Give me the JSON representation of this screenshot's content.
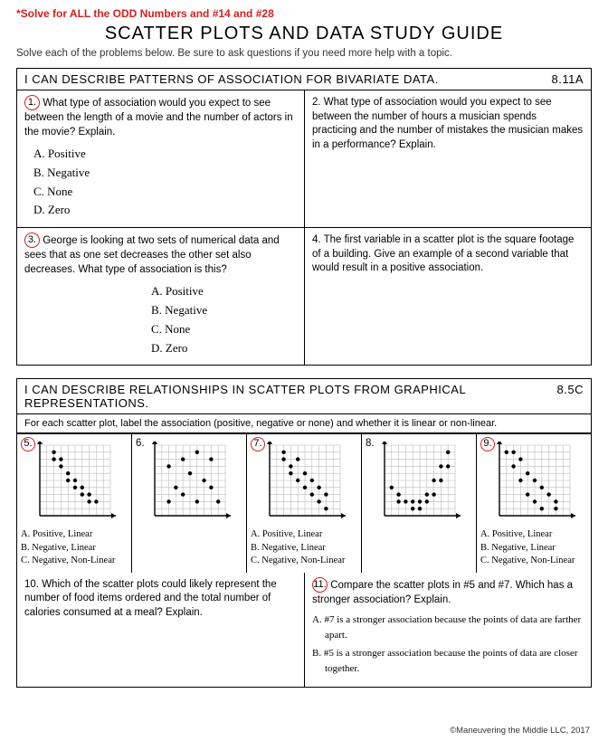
{
  "instruction": "*Solve for ALL the ODD Numbers and #14 and #28",
  "title": "SCATTER PLOTS AND DATA STUDY GUIDE",
  "subtitle": "Solve each of the problems below. Be sure to ask questions if you need more help with a topic.",
  "section1": {
    "header": "I CAN DESCRIBE PATTERNS OF ASSOCIATION FOR BIVARIATE DATA.",
    "code": "8.11A",
    "q1": {
      "num": "1.",
      "text": "What type of association would you expect to see between the length of a movie and the number of actors in the movie? Explain.",
      "options": [
        "A. Positive",
        "B. Negative",
        "C. None",
        "D. Zero"
      ]
    },
    "q2": {
      "num": "2.",
      "text": "What type of association would you expect to see between the number of hours a musician spends practicing and the number of mistakes the musician makes in a performance? Explain."
    },
    "q3": {
      "num": "3.",
      "text": "George is looking at two sets of numerical data and sees that as one set decreases the other set also decreases. What type of association is this?",
      "options": [
        "A. Positive",
        "B. Negative",
        "C. None",
        "D. Zero"
      ]
    },
    "q4": {
      "num": "4.",
      "text": "The first variable in a scatter plot is the square footage of a building. Give an example of a second variable that would result in a positive association."
    }
  },
  "section2": {
    "header": "I CAN DESCRIBE RELATIONSHIPS IN SCATTER PLOTS FROM GRAPHICAL REPRESENTATIONS.",
    "code": "8.5C",
    "sub": "For each scatter plot, label the association (positive, negative or none) and whether it is linear or non-linear.",
    "plots": [
      {
        "num": "5.",
        "circled": true,
        "points": [
          [
            2,
            9
          ],
          [
            2,
            8
          ],
          [
            3,
            8
          ],
          [
            3,
            7
          ],
          [
            4,
            6
          ],
          [
            4,
            5
          ],
          [
            5,
            5
          ],
          [
            5,
            4
          ],
          [
            6,
            4
          ],
          [
            6,
            3
          ],
          [
            7,
            3
          ],
          [
            7,
            2
          ],
          [
            8,
            2
          ]
        ],
        "answers": [
          "A. Positive, Linear",
          "B. Negative, Linear",
          "C. Negative, Non-Linear"
        ]
      },
      {
        "num": "6.",
        "circled": false,
        "points": [
          [
            2,
            2
          ],
          [
            2,
            7
          ],
          [
            3,
            4
          ],
          [
            4,
            8
          ],
          [
            4,
            3
          ],
          [
            5,
            6
          ],
          [
            6,
            2
          ],
          [
            6,
            9
          ],
          [
            7,
            5
          ],
          [
            8,
            4
          ],
          [
            8,
            8
          ],
          [
            9,
            2
          ]
        ],
        "answers": []
      },
      {
        "num": "7.",
        "circled": true,
        "points": [
          [
            2,
            8
          ],
          [
            2,
            9
          ],
          [
            3,
            6
          ],
          [
            3,
            7
          ],
          [
            4,
            5
          ],
          [
            4,
            8
          ],
          [
            5,
            4
          ],
          [
            5,
            6
          ],
          [
            6,
            3
          ],
          [
            6,
            5
          ],
          [
            7,
            2
          ],
          [
            7,
            4
          ],
          [
            8,
            3
          ],
          [
            8,
            1
          ]
        ],
        "answers": [
          "A. Positive, Linear",
          "B. Negative, Linear",
          "C. Negative, Non-Linear"
        ]
      },
      {
        "num": "8.",
        "circled": false,
        "points": [
          [
            1,
            4
          ],
          [
            2,
            2
          ],
          [
            2,
            3
          ],
          [
            3,
            2
          ],
          [
            4,
            1
          ],
          [
            4,
            2
          ],
          [
            5,
            1
          ],
          [
            5,
            2
          ],
          [
            6,
            2
          ],
          [
            6,
            3
          ],
          [
            7,
            3
          ],
          [
            7,
            5
          ],
          [
            8,
            5
          ],
          [
            8,
            7
          ],
          [
            9,
            7
          ],
          [
            9,
            9
          ]
        ],
        "answers": []
      },
      {
        "num": "9.",
        "circled": true,
        "points": [
          [
            1,
            9
          ],
          [
            2,
            9
          ],
          [
            2,
            7
          ],
          [
            3,
            8
          ],
          [
            3,
            5
          ],
          [
            4,
            6
          ],
          [
            4,
            3
          ],
          [
            5,
            5
          ],
          [
            5,
            2
          ],
          [
            6,
            4
          ],
          [
            6,
            1
          ],
          [
            7,
            3
          ],
          [
            8,
            2
          ],
          [
            8,
            1
          ]
        ],
        "answers": [
          "A. Positive, Linear",
          "B. Negative, Linear",
          "C. Negative, Non-Linear"
        ]
      }
    ],
    "q10": {
      "num": "10.",
      "text": "Which of the scatter plots could likely represent the number of food items ordered and the total number of calories consumed at a meal? Explain."
    },
    "q11": {
      "num": "11.",
      "text": "Compare the scatter plots in #5 and #7. Which has a stronger association? Explain.",
      "opts": [
        "A.  #7 is a stronger association because the points of data are farther apart.",
        "B.  #5 is a stronger association because the points of data are closer together."
      ]
    }
  },
  "copyright": "©Maneuvering the Middle LLC, 2017",
  "style": {
    "accent": "#d42020",
    "gridSize": 78,
    "gridCells": 10,
    "dotRadius": 2.2
  }
}
